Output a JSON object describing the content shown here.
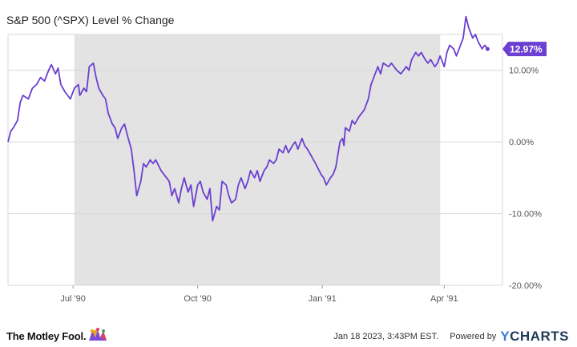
{
  "title": "S&P 500 (^SPX) Level % Change",
  "footer": {
    "brand": "The Motley Fool.",
    "timestamp": "Jan 18 2023, 3:43PM EST.",
    "powered_by": "Powered by",
    "ycharts_y": "Y",
    "ycharts_rest": "CHARTS"
  },
  "colors": {
    "line": "#6a3fd1",
    "shade": "#e3e3e3",
    "grid": "#d9d9d9",
    "label_bg": "#6a3fd1"
  },
  "chart_data": {
    "type": "line",
    "title": "S&P 500 (^SPX) Level % Change",
    "xlabel": "",
    "ylabel": "",
    "x_ticks": [
      "Jul '90",
      "Oct '90",
      "Jan '91",
      "Apr '91"
    ],
    "y_ticks": [
      "-20.00%",
      "-10.00%",
      "0.00%",
      "10.00%"
    ],
    "ylim": [
      -20,
      15
    ],
    "x_range": [
      "1990-05-14",
      "1991-05-14"
    ],
    "grid": true,
    "shaded_period": [
      "1990-07-02",
      "1991-03-29"
    ],
    "last_value_label": "12.97%",
    "series": [
      {
        "values": [
          [
            "1990-05-14",
            0.0
          ],
          [
            "1990-05-16",
            1.5
          ],
          [
            "1990-05-18",
            2.0
          ],
          [
            "1990-05-21",
            3.0
          ],
          [
            "1990-05-23",
            5.5
          ],
          [
            "1990-05-25",
            6.5
          ],
          [
            "1990-05-29",
            6.0
          ],
          [
            "1990-06-01",
            7.5
          ],
          [
            "1990-06-04",
            8.0
          ],
          [
            "1990-06-07",
            9.0
          ],
          [
            "1990-06-10",
            8.5
          ],
          [
            "1990-06-13",
            10.0
          ],
          [
            "1990-06-15",
            10.8
          ],
          [
            "1990-06-18",
            9.5
          ],
          [
            "1990-06-20",
            10.3
          ],
          [
            "1990-06-22",
            8.0
          ],
          [
            "1990-06-25",
            7.0
          ],
          [
            "1990-06-27",
            6.5
          ],
          [
            "1990-06-29",
            6.0
          ],
          [
            "1990-07-02",
            7.5
          ],
          [
            "1990-07-05",
            8.0
          ],
          [
            "1990-07-06",
            6.5
          ],
          [
            "1990-07-09",
            7.5
          ],
          [
            "1990-07-11",
            7.0
          ],
          [
            "1990-07-13",
            10.5
          ],
          [
            "1990-07-16",
            11.0
          ],
          [
            "1990-07-18",
            9.0
          ],
          [
            "1990-07-20",
            7.5
          ],
          [
            "1990-07-23",
            6.5
          ],
          [
            "1990-07-25",
            6.0
          ],
          [
            "1990-07-27",
            4.0
          ],
          [
            "1990-07-30",
            2.5
          ],
          [
            "1990-08-01",
            2.0
          ],
          [
            "1990-08-03",
            0.5
          ],
          [
            "1990-08-06",
            2.0
          ],
          [
            "1990-08-08",
            2.5
          ],
          [
            "1990-08-10",
            1.0
          ],
          [
            "1990-08-13",
            -1.0
          ],
          [
            "1990-08-15",
            -4.0
          ],
          [
            "1990-08-17",
            -7.5
          ],
          [
            "1990-08-20",
            -5.5
          ],
          [
            "1990-08-22",
            -3.0
          ],
          [
            "1990-08-24",
            -3.5
          ],
          [
            "1990-08-27",
            -2.5
          ],
          [
            "1990-08-29",
            -3.0
          ],
          [
            "1990-08-31",
            -2.5
          ],
          [
            "1990-09-04",
            -4.0
          ],
          [
            "1990-09-06",
            -4.5
          ],
          [
            "1990-09-10",
            -5.5
          ],
          [
            "1990-09-12",
            -7.5
          ],
          [
            "1990-09-14",
            -6.5
          ],
          [
            "1990-09-17",
            -8.5
          ],
          [
            "1990-09-19",
            -6.5
          ],
          [
            "1990-09-21",
            -5.0
          ],
          [
            "1990-09-24",
            -7.0
          ],
          [
            "1990-09-26",
            -6.0
          ],
          [
            "1990-09-28",
            -9.0
          ],
          [
            "1990-10-01",
            -6.0
          ],
          [
            "1990-10-03",
            -5.5
          ],
          [
            "1990-10-05",
            -7.0
          ],
          [
            "1990-10-08",
            -8.0
          ],
          [
            "1990-10-10",
            -6.5
          ],
          [
            "1990-10-12",
            -11.0
          ],
          [
            "1990-10-15",
            -9.0
          ],
          [
            "1990-10-17",
            -9.5
          ],
          [
            "1990-10-19",
            -5.5
          ],
          [
            "1990-10-22",
            -6.0
          ],
          [
            "1990-10-24",
            -7.5
          ],
          [
            "1990-10-26",
            -8.5
          ],
          [
            "1990-10-29",
            -8.0
          ],
          [
            "1990-10-31",
            -6.0
          ],
          [
            "1990-11-02",
            -5.0
          ],
          [
            "1990-11-05",
            -6.5
          ],
          [
            "1990-11-07",
            -5.5
          ],
          [
            "1990-11-09",
            -4.0
          ],
          [
            "1990-11-12",
            -5.0
          ],
          [
            "1990-11-14",
            -4.0
          ],
          [
            "1990-11-16",
            -5.5
          ],
          [
            "1990-11-19",
            -4.0
          ],
          [
            "1990-11-21",
            -3.5
          ],
          [
            "1990-11-23",
            -2.5
          ],
          [
            "1990-11-26",
            -3.0
          ],
          [
            "1990-11-28",
            -2.5
          ],
          [
            "1990-11-30",
            -1.0
          ],
          [
            "1990-12-03",
            -1.5
          ],
          [
            "1990-12-05",
            -0.5
          ],
          [
            "1990-12-07",
            -1.5
          ],
          [
            "1990-12-10",
            -0.5
          ],
          [
            "1990-12-12",
            0.0
          ],
          [
            "1990-12-14",
            -1.0
          ],
          [
            "1990-12-17",
            0.5
          ],
          [
            "1990-12-19",
            -0.5
          ],
          [
            "1990-12-21",
            -1.0
          ],
          [
            "1990-12-24",
            -2.0
          ],
          [
            "1990-12-27",
            -3.0
          ],
          [
            "1990-12-31",
            -4.5
          ],
          [
            "1991-01-02",
            -5.0
          ],
          [
            "1991-01-04",
            -6.0
          ],
          [
            "1991-01-07",
            -5.0
          ],
          [
            "1991-01-09",
            -4.5
          ],
          [
            "1991-01-11",
            -3.5
          ],
          [
            "1991-01-14",
            0.0
          ],
          [
            "1991-01-16",
            0.5
          ],
          [
            "1991-01-17",
            -0.5
          ],
          [
            "1991-01-18",
            2.0
          ],
          [
            "1991-01-21",
            1.5
          ],
          [
            "1991-01-23",
            3.0
          ],
          [
            "1991-01-25",
            2.5
          ],
          [
            "1991-01-28",
            3.5
          ],
          [
            "1991-01-30",
            4.0
          ],
          [
            "1991-02-01",
            4.5
          ],
          [
            "1991-02-04",
            6.0
          ],
          [
            "1991-02-06",
            8.0
          ],
          [
            "1991-02-08",
            9.0
          ],
          [
            "1991-02-11",
            10.5
          ],
          [
            "1991-02-13",
            9.5
          ],
          [
            "1991-02-15",
            11.0
          ],
          [
            "1991-02-19",
            10.5
          ],
          [
            "1991-02-21",
            11.0
          ],
          [
            "1991-02-25",
            10.0
          ],
          [
            "1991-02-28",
            9.5
          ],
          [
            "1991-03-04",
            10.5
          ],
          [
            "1991-03-06",
            10.0
          ],
          [
            "1991-03-08",
            11.5
          ],
          [
            "1991-03-11",
            12.5
          ],
          [
            "1991-03-13",
            12.0
          ],
          [
            "1991-03-15",
            12.5
          ],
          [
            "1991-03-18",
            11.5
          ],
          [
            "1991-03-20",
            11.0
          ],
          [
            "1991-03-22",
            11.5
          ],
          [
            "1991-03-25",
            10.5
          ],
          [
            "1991-03-27",
            11.0
          ],
          [
            "1991-03-29",
            12.0
          ],
          [
            "1991-04-01",
            10.5
          ],
          [
            "1991-04-03",
            12.5
          ],
          [
            "1991-04-05",
            13.5
          ],
          [
            "1991-04-08",
            13.0
          ],
          [
            "1991-04-10",
            12.0
          ],
          [
            "1991-04-12",
            13.0
          ],
          [
            "1991-04-15",
            14.5
          ],
          [
            "1991-04-17",
            17.5
          ],
          [
            "1991-04-19",
            16.0
          ],
          [
            "1991-04-22",
            14.5
          ],
          [
            "1991-04-24",
            15.0
          ],
          [
            "1991-04-26",
            14.0
          ],
          [
            "1991-04-29",
            13.0
          ],
          [
            "1991-05-01",
            13.5
          ],
          [
            "1991-05-03",
            12.97
          ]
        ]
      }
    ]
  }
}
